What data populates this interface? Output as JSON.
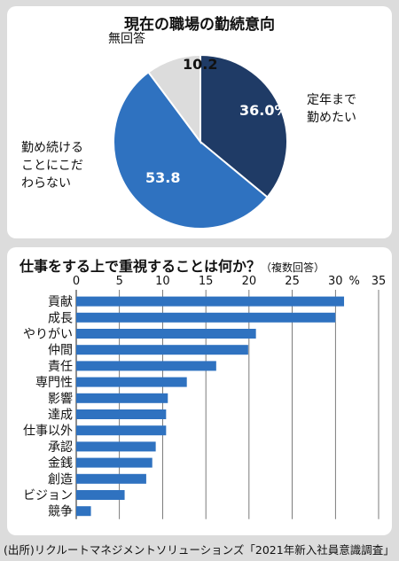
{
  "pie": {
    "title": "現在の職場の勤続意向",
    "chart_data": {
      "type": "pie",
      "title": "現在の職場の勤続意向",
      "slices": [
        {
          "label": "定年まで勤めたい",
          "label_lines": [
            "定年まで",
            "勤めたい"
          ],
          "value": 36.0,
          "display": "36.0%",
          "color": "#1f3b66"
        },
        {
          "label": "勤め続けることにこだわらない",
          "label_lines": [
            "勤め続ける",
            "ことにこだ",
            "わらない"
          ],
          "value": 53.8,
          "display": "53.8",
          "color": "#2f72c0"
        },
        {
          "label": "無回答",
          "label_lines": [
            "無回答"
          ],
          "value": 10.2,
          "display": "10.2",
          "color": "#dcdcdc"
        }
      ]
    }
  },
  "bar": {
    "title": "仕事をする上で重視することは何か？",
    "note": "（複数回答）",
    "chart_data": {
      "type": "bar",
      "orientation": "horizontal",
      "title": "仕事をする上で重視することは何か？",
      "unit": "%",
      "xlim": [
        0,
        35
      ],
      "ticks": [
        0,
        5,
        10,
        15,
        20,
        25,
        30,
        35
      ],
      "grid": true,
      "color": "#2f72c0",
      "categories": [
        "貢献",
        "成長",
        "やりがい",
        "仲間",
        "責任",
        "専門性",
        "影響",
        "達成",
        "仕事以外",
        "承認",
        "金銭",
        "創造",
        "ビジョン",
        "競争"
      ],
      "values": [
        31.0,
        30.0,
        20.8,
        19.9,
        16.2,
        12.8,
        10.6,
        10.4,
        10.4,
        9.2,
        8.8,
        8.1,
        5.6,
        1.7
      ]
    }
  },
  "source": "(出所)リクルートマネジメントソリューションズ「2021年新入社員意識調査」"
}
